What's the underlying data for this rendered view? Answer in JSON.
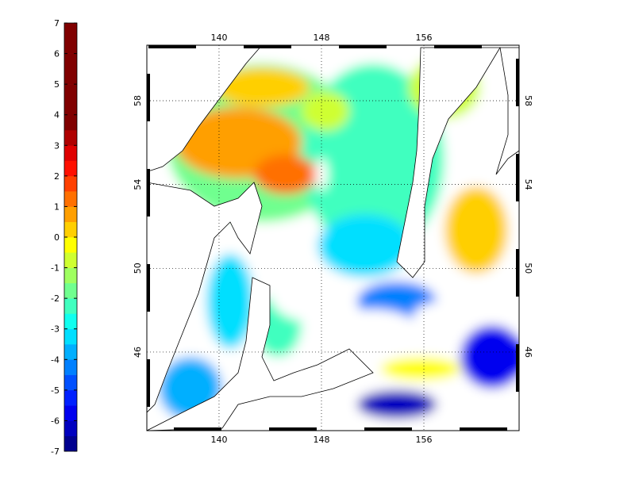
{
  "colorbar": {
    "range": [
      -7,
      7
    ],
    "ticks": [
      -7,
      -6,
      -5,
      -4,
      -3,
      -2,
      -1,
      0,
      1,
      2,
      3,
      4,
      5,
      6,
      7
    ],
    "colors": [
      "#00008f",
      "#0000bf",
      "#0000ef",
      "#0020ff",
      "#0050ff",
      "#0080ff",
      "#00afff",
      "#00dfff",
      "#10ffef",
      "#40ffbf",
      "#70ff8f",
      "#9fff60",
      "#cfff30",
      "#ffff00",
      "#ffcf00",
      "#ff9f00",
      "#ff7000",
      "#ff4000",
      "#ff1000",
      "#df0000",
      "#af0000",
      "#800000",
      "#800000",
      "#800000",
      "#800000",
      "#800000",
      "#800000",
      "#800000"
    ]
  },
  "map": {
    "lon_range": [
      134.36,
      163.44
    ],
    "lat_range": [
      42.25,
      60.65
    ],
    "lon_ticks": [
      140,
      148,
      156
    ],
    "lat_ticks": [
      46,
      50,
      54,
      58
    ]
  }
}
